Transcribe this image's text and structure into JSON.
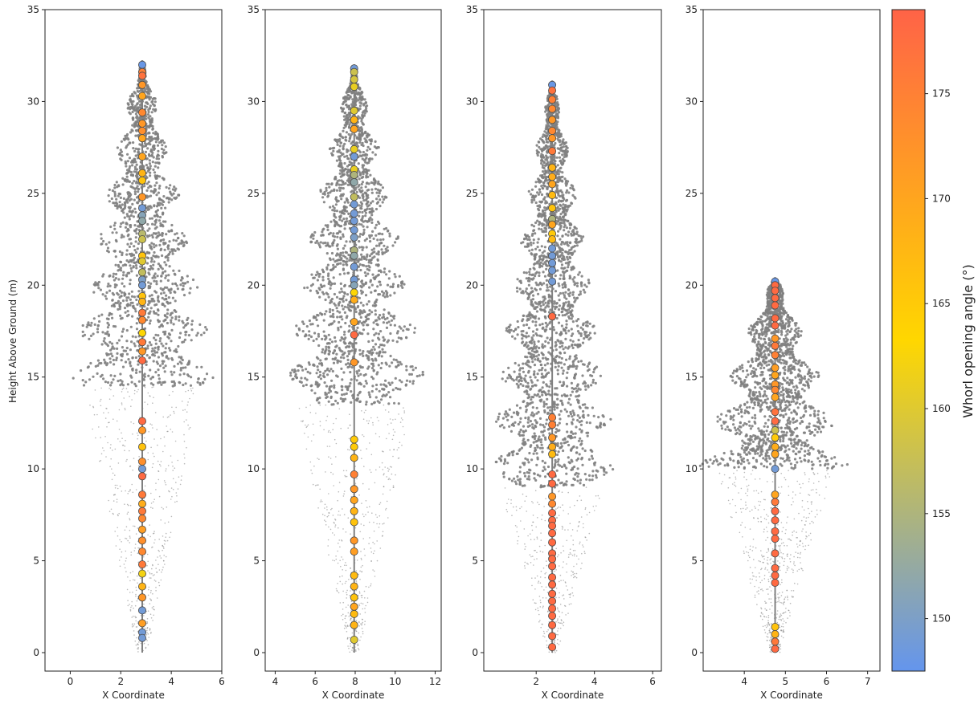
{
  "chart_data": {
    "type": "scatter",
    "description_note": "",
    "ylabel": "Height Above Ground (m)",
    "xlabel": "X Coordinate",
    "ylim": [
      0,
      35
    ],
    "y_ticks": [
      0,
      5,
      10,
      15,
      20,
      25,
      30,
      35
    ],
    "colorbar": {
      "label": "Whorl opening angle (°)",
      "range": [
        147.5,
        179
      ],
      "ticks": [
        150,
        155,
        160,
        165,
        170,
        175
      ],
      "colors": [
        "#6495ED",
        "#FFD700",
        "#FF6347"
      ]
    },
    "panels": [
      {
        "xlim": [
          -1,
          6
        ],
        "x_ticks": [
          0,
          2,
          4,
          6
        ],
        "whorls": [
          {
            "y": 32.0,
            "angle": 148
          },
          {
            "y": 31.6,
            "angle": 175
          },
          {
            "y": 31.4,
            "angle": 177
          },
          {
            "y": 30.9,
            "angle": 172
          },
          {
            "y": 30.3,
            "angle": 170
          },
          {
            "y": 29.4,
            "angle": 174
          },
          {
            "y": 28.8,
            "angle": 172
          },
          {
            "y": 28.4,
            "angle": 173
          },
          {
            "y": 28.0,
            "angle": 170
          },
          {
            "y": 27.0,
            "angle": 170
          },
          {
            "y": 26.1,
            "angle": 168
          },
          {
            "y": 25.7,
            "angle": 166
          },
          {
            "y": 24.8,
            "angle": 172
          },
          {
            "y": 24.2,
            "angle": 149
          },
          {
            "y": 23.8,
            "angle": 151
          },
          {
            "y": 23.5,
            "angle": 152
          },
          {
            "y": 22.8,
            "angle": 156
          },
          {
            "y": 22.5,
            "angle": 158
          },
          {
            "y": 21.6,
            "angle": 166
          },
          {
            "y": 21.3,
            "angle": 160
          },
          {
            "y": 20.7,
            "angle": 157
          },
          {
            "y": 20.3,
            "angle": 150
          },
          {
            "y": 20.0,
            "angle": 149
          },
          {
            "y": 19.4,
            "angle": 166
          },
          {
            "y": 19.1,
            "angle": 168
          },
          {
            "y": 18.5,
            "angle": 176
          },
          {
            "y": 18.1,
            "angle": 174
          },
          {
            "y": 17.4,
            "angle": 163
          },
          {
            "y": 16.9,
            "angle": 176
          },
          {
            "y": 16.4,
            "angle": 172
          },
          {
            "y": 15.9,
            "angle": 178
          },
          {
            "y": 12.6,
            "angle": 178
          },
          {
            "y": 12.1,
            "angle": 172
          },
          {
            "y": 11.2,
            "angle": 166
          },
          {
            "y": 10.4,
            "angle": 173
          },
          {
            "y": 10.0,
            "angle": 149
          },
          {
            "y": 9.6,
            "angle": 178
          },
          {
            "y": 8.6,
            "angle": 176
          },
          {
            "y": 8.1,
            "angle": 169
          },
          {
            "y": 7.7,
            "angle": 176
          },
          {
            "y": 7.3,
            "angle": 174
          },
          {
            "y": 6.7,
            "angle": 171
          },
          {
            "y": 6.1,
            "angle": 173
          },
          {
            "y": 5.5,
            "angle": 174
          },
          {
            "y": 4.8,
            "angle": 176
          },
          {
            "y": 4.3,
            "angle": 162
          },
          {
            "y": 3.6,
            "angle": 168
          },
          {
            "y": 3.0,
            "angle": 172
          },
          {
            "y": 2.3,
            "angle": 149
          },
          {
            "y": 1.6,
            "angle": 171
          },
          {
            "y": 1.1,
            "angle": 149
          },
          {
            "y": 0.8,
            "angle": 149
          }
        ]
      },
      {
        "xlim": [
          3.5,
          12.3
        ],
        "x_ticks": [
          4,
          6,
          8,
          10,
          12
        ],
        "whorls": [
          {
            "y": 31.8,
            "angle": 149
          },
          {
            "y": 31.6,
            "angle": 158
          },
          {
            "y": 31.2,
            "angle": 159
          },
          {
            "y": 30.8,
            "angle": 161
          },
          {
            "y": 29.5,
            "angle": 160
          },
          {
            "y": 29.0,
            "angle": 168
          },
          {
            "y": 28.5,
            "angle": 170
          },
          {
            "y": 27.4,
            "angle": 161
          },
          {
            "y": 27.0,
            "angle": 149
          },
          {
            "y": 26.3,
            "angle": 161
          },
          {
            "y": 26.0,
            "angle": 155
          },
          {
            "y": 25.6,
            "angle": 152
          },
          {
            "y": 24.8,
            "angle": 157
          },
          {
            "y": 24.4,
            "angle": 149
          },
          {
            "y": 23.9,
            "angle": 149
          },
          {
            "y": 23.5,
            "angle": 149
          },
          {
            "y": 23.0,
            "angle": 149
          },
          {
            "y": 22.6,
            "angle": 150
          },
          {
            "y": 21.9,
            "angle": 155
          },
          {
            "y": 21.6,
            "angle": 152
          },
          {
            "y": 21.0,
            "angle": 149
          },
          {
            "y": 20.3,
            "angle": 149
          },
          {
            "y": 20.0,
            "angle": 151
          },
          {
            "y": 19.6,
            "angle": 163
          },
          {
            "y": 19.2,
            "angle": 169
          },
          {
            "y": 18.0,
            "angle": 170
          },
          {
            "y": 17.3,
            "angle": 178
          },
          {
            "y": 15.8,
            "angle": 172
          },
          {
            "y": 11.6,
            "angle": 165
          },
          {
            "y": 11.2,
            "angle": 165
          },
          {
            "y": 10.6,
            "angle": 168
          },
          {
            "y": 9.7,
            "angle": 175
          },
          {
            "y": 8.9,
            "angle": 172
          },
          {
            "y": 8.3,
            "angle": 170
          },
          {
            "y": 7.7,
            "angle": 168
          },
          {
            "y": 7.1,
            "angle": 166
          },
          {
            "y": 6.1,
            "angle": 172
          },
          {
            "y": 5.5,
            "angle": 171
          },
          {
            "y": 4.2,
            "angle": 167
          },
          {
            "y": 3.6,
            "angle": 168
          },
          {
            "y": 3.0,
            "angle": 166
          },
          {
            "y": 2.5,
            "angle": 170
          },
          {
            "y": 2.1,
            "angle": 167
          },
          {
            "y": 1.5,
            "angle": 168
          },
          {
            "y": 0.7,
            "angle": 160
          }
        ]
      },
      {
        "xlim": [
          0.2,
          6.3
        ],
        "x_ticks": [
          2,
          4,
          6
        ],
        "whorls": [
          {
            "y": 30.9,
            "angle": 148
          },
          {
            "y": 30.6,
            "angle": 177
          },
          {
            "y": 30.1,
            "angle": 175
          },
          {
            "y": 29.6,
            "angle": 174
          },
          {
            "y": 29.0,
            "angle": 172
          },
          {
            "y": 28.4,
            "angle": 174
          },
          {
            "y": 28.0,
            "angle": 172
          },
          {
            "y": 27.3,
            "angle": 176
          },
          {
            "y": 26.4,
            "angle": 168
          },
          {
            "y": 25.9,
            "angle": 169
          },
          {
            "y": 25.5,
            "angle": 170
          },
          {
            "y": 24.9,
            "angle": 167
          },
          {
            "y": 24.2,
            "angle": 166
          },
          {
            "y": 23.6,
            "angle": 155
          },
          {
            "y": 23.3,
            "angle": 170
          },
          {
            "y": 22.8,
            "angle": 165
          },
          {
            "y": 22.5,
            "angle": 167
          },
          {
            "y": 22.0,
            "angle": 149
          },
          {
            "y": 21.6,
            "angle": 149
          },
          {
            "y": 21.2,
            "angle": 149
          },
          {
            "y": 20.8,
            "angle": 149
          },
          {
            "y": 20.2,
            "angle": 149
          },
          {
            "y": 18.3,
            "angle": 178
          },
          {
            "y": 12.8,
            "angle": 175
          },
          {
            "y": 12.4,
            "angle": 175
          },
          {
            "y": 11.7,
            "angle": 172
          },
          {
            "y": 11.2,
            "angle": 169
          },
          {
            "y": 10.8,
            "angle": 167
          },
          {
            "y": 9.7,
            "angle": 178
          },
          {
            "y": 9.2,
            "angle": 178
          },
          {
            "y": 8.5,
            "angle": 172
          },
          {
            "y": 8.1,
            "angle": 174
          },
          {
            "y": 7.6,
            "angle": 178
          },
          {
            "y": 7.2,
            "angle": 178
          },
          {
            "y": 6.9,
            "angle": 178
          },
          {
            "y": 6.5,
            "angle": 178
          },
          {
            "y": 6.0,
            "angle": 178
          },
          {
            "y": 5.4,
            "angle": 178
          },
          {
            "y": 5.1,
            "angle": 178
          },
          {
            "y": 4.7,
            "angle": 178
          },
          {
            "y": 4.1,
            "angle": 178
          },
          {
            "y": 3.7,
            "angle": 178
          },
          {
            "y": 3.2,
            "angle": 178
          },
          {
            "y": 2.8,
            "angle": 178
          },
          {
            "y": 2.4,
            "angle": 178
          },
          {
            "y": 2.0,
            "angle": 178
          },
          {
            "y": 1.5,
            "angle": 178
          },
          {
            "y": 0.9,
            "angle": 178
          },
          {
            "y": 0.3,
            "angle": 178
          }
        ]
      },
      {
        "xlim": [
          3,
          7.3
        ],
        "x_ticks": [
          4,
          5,
          6,
          7
        ],
        "whorls": [
          {
            "y": 20.2,
            "angle": 148
          },
          {
            "y": 20.0,
            "angle": 178
          },
          {
            "y": 19.7,
            "angle": 178
          },
          {
            "y": 19.3,
            "angle": 178
          },
          {
            "y": 18.9,
            "angle": 178
          },
          {
            "y": 18.2,
            "angle": 178
          },
          {
            "y": 17.8,
            "angle": 178
          },
          {
            "y": 17.1,
            "angle": 172
          },
          {
            "y": 16.7,
            "angle": 176
          },
          {
            "y": 16.2,
            "angle": 175
          },
          {
            "y": 15.5,
            "angle": 171
          },
          {
            "y": 15.1,
            "angle": 170
          },
          {
            "y": 14.6,
            "angle": 172
          },
          {
            "y": 14.3,
            "angle": 174
          },
          {
            "y": 13.9,
            "angle": 170
          },
          {
            "y": 13.1,
            "angle": 177
          },
          {
            "y": 12.6,
            "angle": 178
          },
          {
            "y": 12.1,
            "angle": 158
          },
          {
            "y": 11.7,
            "angle": 165
          },
          {
            "y": 11.2,
            "angle": 169
          },
          {
            "y": 10.8,
            "angle": 170
          },
          {
            "y": 10.0,
            "angle": 149
          },
          {
            "y": 8.6,
            "angle": 170
          },
          {
            "y": 8.2,
            "angle": 176
          },
          {
            "y": 7.7,
            "angle": 178
          },
          {
            "y": 7.2,
            "angle": 178
          },
          {
            "y": 6.6,
            "angle": 178
          },
          {
            "y": 6.2,
            "angle": 178
          },
          {
            "y": 5.4,
            "angle": 178
          },
          {
            "y": 4.6,
            "angle": 178
          },
          {
            "y": 4.2,
            "angle": 178
          },
          {
            "y": 3.8,
            "angle": 178
          },
          {
            "y": 1.4,
            "angle": 166
          },
          {
            "y": 1.0,
            "angle": 168
          },
          {
            "y": 0.6,
            "angle": 176
          },
          {
            "y": 0.2,
            "angle": 178
          }
        ]
      }
    ]
  }
}
